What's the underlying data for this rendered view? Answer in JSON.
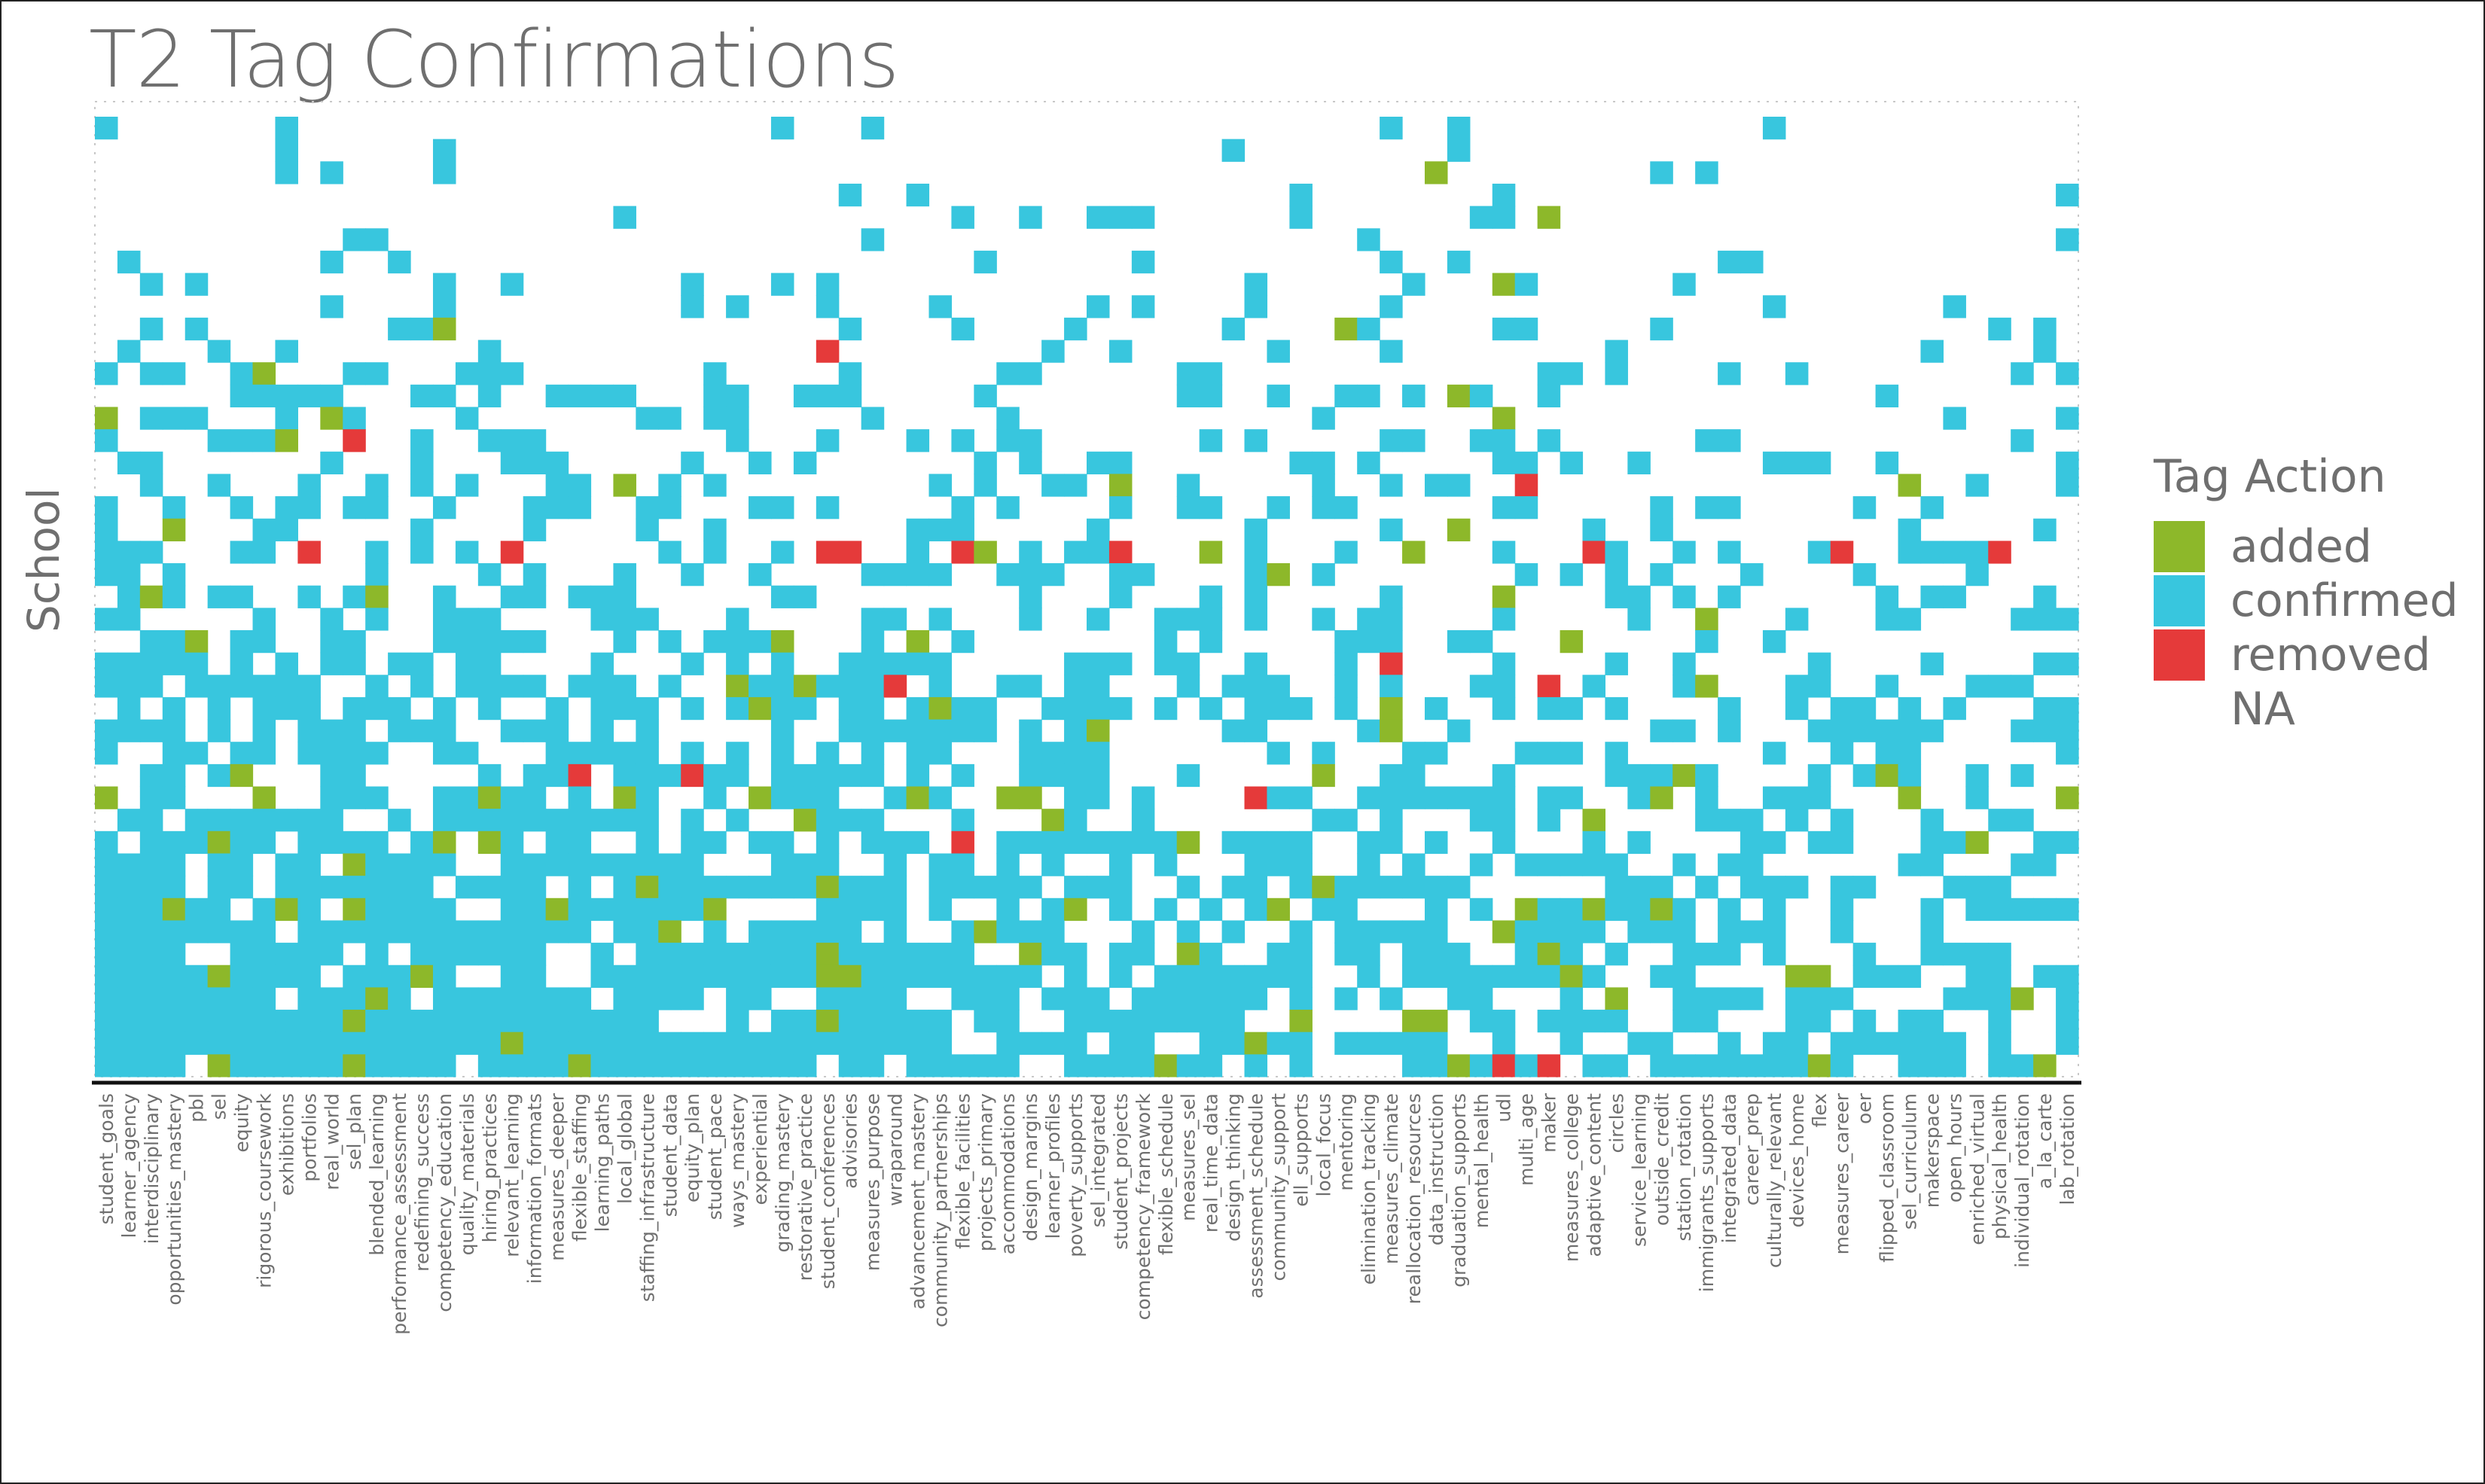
{
  "chart_data": {
    "type": "heatmap",
    "title": "T2 Tag Confirmations",
    "xlabel": "",
    "ylabel": "School",
    "legend": {
      "title": "Tag Action",
      "placement": "right",
      "entries": [
        {
          "label": "added",
          "color": "#8db82a"
        },
        {
          "label": "confirmed",
          "color": "#38c6de"
        },
        {
          "label": "removed",
          "color": "#e53a3a"
        },
        {
          "label": "NA",
          "color": "#ffffff"
        }
      ]
    },
    "grid": false,
    "categories": [
      "student_goals",
      "learner_agency",
      "interdisciplinary",
      "opportunities_mastery",
      "pbl",
      "sel",
      "equity",
      "rigorous_coursework",
      "exhibitions",
      "portfolios",
      "real_world",
      "sel_plan",
      "blended_learning",
      "performance_assessment",
      "redefining_success",
      "competency_education",
      "quality_materials",
      "hiring_practices",
      "relevant_learning",
      "information_formats",
      "measures_deeper",
      "flexible_staffing",
      "learning_paths",
      "local_global",
      "staffing_infrastructure",
      "student_data",
      "equity_plan",
      "student_pace",
      "ways_mastery",
      "experiential",
      "grading_mastery",
      "restorative_practice",
      "student_conferences",
      "advisories",
      "measures_purpose",
      "wraparound",
      "advancement_mastery",
      "community_partnerships",
      "flexible_facilities",
      "projects_primary",
      "accommodations",
      "design_margins",
      "learner_profiles",
      "poverty_supports",
      "sel_integrated",
      "student_projects",
      "competency_framework",
      "flexible_schedule",
      "measures_sel",
      "real_time_data",
      "design_thinking",
      "assessment_schedule",
      "community_support",
      "ell_supports",
      "local_focus",
      "mentoring",
      "elimination_tracking",
      "measures_climate",
      "reallocation_resources",
      "data_instruction",
      "graduation_supports",
      "mental_health",
      "udl",
      "multi_age",
      "maker",
      "measures_college",
      "adaptive_content",
      "circles",
      "service_learning",
      "outside_credit",
      "station_rotation",
      "immigrants_supports",
      "integrated_data",
      "career_prep",
      "culturally_relevant",
      "devices_home",
      "flex",
      "measures_career",
      "oer",
      "flipped_classroom",
      "sel_curriculum",
      "makerspace",
      "open_hours",
      "enriched_virtual",
      "physical_health",
      "individual_rotation",
      "a_la_carte",
      "lab_rotation"
    ],
    "n_schools": 43,
    "description_of_values": "Each cell = one school (row, ordered top to bottom) x one tag (column). Cells encode tag action: added, confirmed, removed, or NA (blank). Confirmed cells increase toward the bottom rows and toward the left columns.",
    "removed_cells": [
      {
        "tag": "student_conferences",
        "school_row": 10
      },
      {
        "tag": "sel_plan",
        "school_row": 14
      },
      {
        "tag": "multi_age",
        "school_row": 16
      },
      {
        "tag": "portfolios",
        "school_row": 19
      },
      {
        "tag": "relevant_learning",
        "school_row": 19
      },
      {
        "tag": "student_conferences",
        "school_row": 19
      },
      {
        "tag": "advisories",
        "school_row": 19
      },
      {
        "tag": "flexible_facilities",
        "school_row": 19
      },
      {
        "tag": "student_projects",
        "school_row": 19
      },
      {
        "tag": "adaptive_content",
        "school_row": 19
      },
      {
        "tag": "measures_career",
        "school_row": 19
      },
      {
        "tag": "physical_health",
        "school_row": 19
      },
      {
        "tag": "measures_climate",
        "school_row": 24
      },
      {
        "tag": "wraparound",
        "school_row": 25
      },
      {
        "tag": "maker",
        "school_row": 25
      },
      {
        "tag": "flexible_staffing",
        "school_row": 29
      },
      {
        "tag": "equity_plan",
        "school_row": 29
      },
      {
        "tag": "assessment_schedule",
        "school_row": 30
      },
      {
        "tag": "flexible_facilities",
        "school_row": 32
      },
      {
        "tag": "udl",
        "school_row": 42
      },
      {
        "tag": "maker",
        "school_row": 42
      }
    ]
  }
}
